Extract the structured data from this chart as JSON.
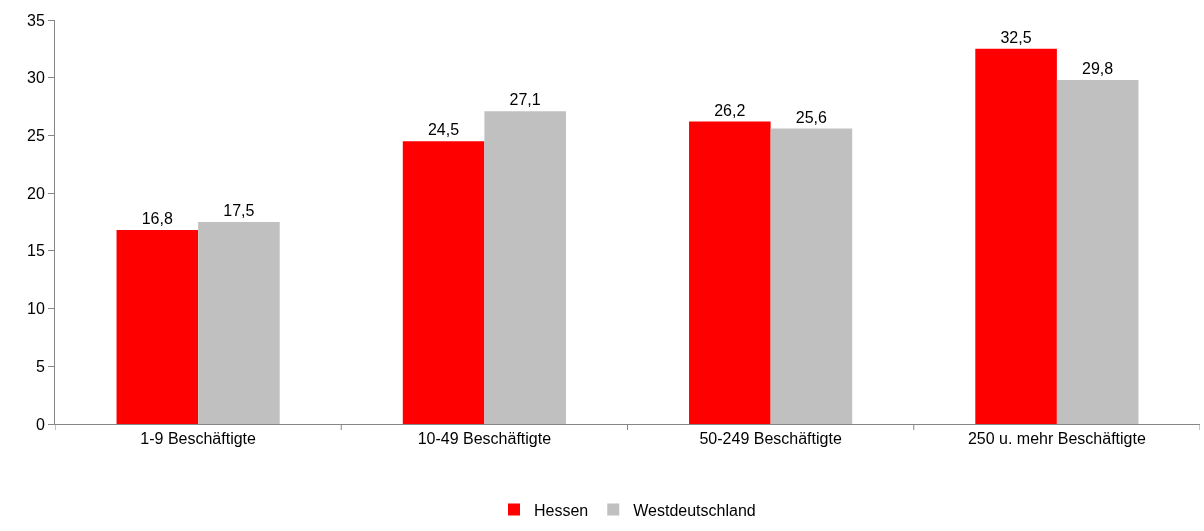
{
  "chart_data": {
    "type": "bar",
    "categories": [
      "1-9 Beschäftigte",
      "10-49 Beschäftigte",
      "50-249 Beschäftigte",
      "250 u. mehr Beschäftigte"
    ],
    "series": [
      {
        "name": "Hessen",
        "color": "#ff0000",
        "values": [
          16.8,
          24.5,
          26.2,
          32.5
        ],
        "value_labels": [
          "16,8",
          "24,5",
          "26,2",
          "32,5"
        ]
      },
      {
        "name": "Westdeutschland",
        "color": "#c0c0c0",
        "values": [
          17.5,
          27.1,
          25.6,
          29.8
        ],
        "value_labels": [
          "17,5",
          "27,1",
          "25,6",
          "29,8"
        ]
      }
    ],
    "ylim": [
      0,
      35
    ],
    "yticks": [
      0,
      5,
      10,
      15,
      20,
      25,
      30,
      35
    ],
    "grid": false,
    "legend": "bottom"
  }
}
